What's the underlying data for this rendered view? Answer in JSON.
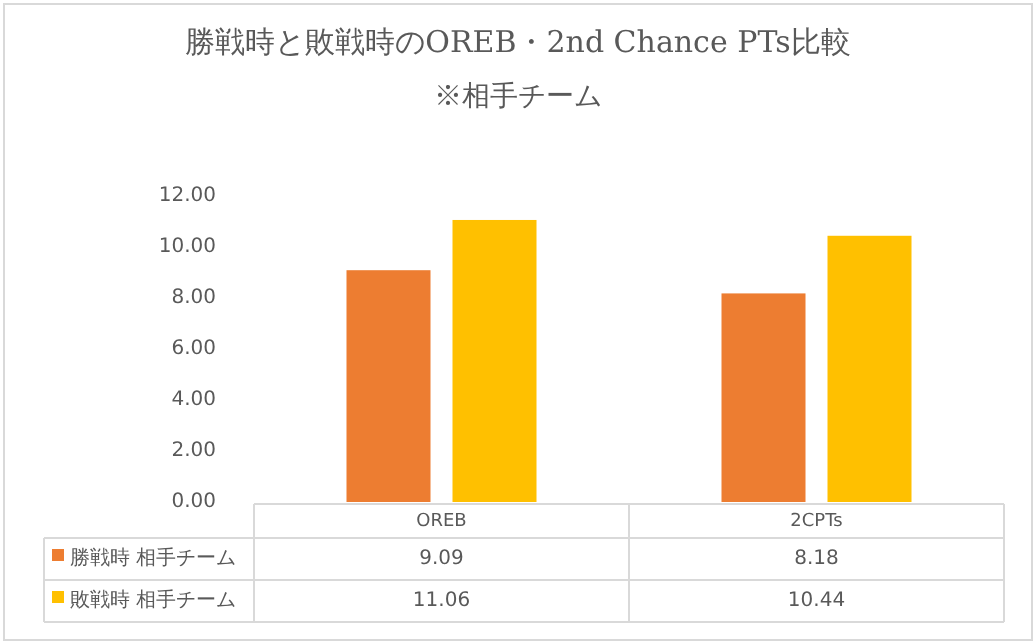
{
  "chart_data": {
    "type": "bar",
    "title": "勝戦時と敗戦時のOREB・2nd Chance PTs比較",
    "subtitle": "※相手チーム",
    "categories": [
      "OREB",
      "2CPTs"
    ],
    "series": [
      {
        "name": "勝戦時 相手チーム",
        "color": "#ed7d31",
        "values": [
          9.09,
          8.18
        ]
      },
      {
        "name": "敗戦時 相手チーム",
        "color": "#ffc000",
        "values": [
          11.06,
          10.44
        ]
      }
    ],
    "ylim": [
      0,
      12
    ],
    "yticks": [
      {
        "value": 0,
        "label": "0.00"
      },
      {
        "value": 2,
        "label": "2.00"
      },
      {
        "value": 4,
        "label": "4.00"
      },
      {
        "value": 6,
        "label": "6.00"
      },
      {
        "value": 8,
        "label": "8.00"
      },
      {
        "value": 10,
        "label": "10.00"
      },
      {
        "value": 12,
        "label": "12.00"
      }
    ],
    "grid": false,
    "legend": "bottom",
    "data_labels": true
  }
}
